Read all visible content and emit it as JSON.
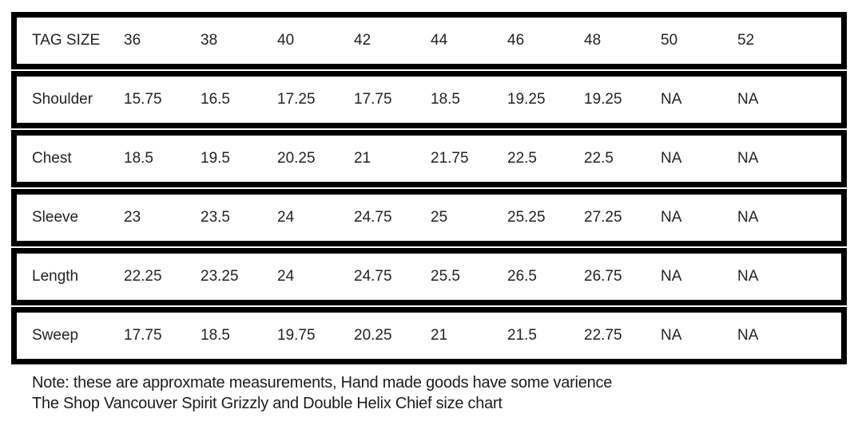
{
  "table": {
    "header": {
      "label": "TAG SIZE",
      "sizes": [
        "36",
        "38",
        "40",
        "42",
        "44",
        "46",
        "48",
        "50",
        "52"
      ]
    },
    "rows": [
      {
        "label": "Shoulder",
        "values": [
          "15.75",
          "16.5",
          "17.25",
          "17.75",
          "18.5",
          "19.25",
          "19.25",
          "NA",
          "NA"
        ]
      },
      {
        "label": "Chest",
        "values": [
          "18.5",
          "19.5",
          "20.25",
          "21",
          "21.75",
          "22.5",
          "22.5",
          "NA",
          "NA"
        ]
      },
      {
        "label": "Sleeve",
        "values": [
          "23",
          "23.5",
          "24",
          "24.75",
          "25",
          "25.25",
          "27.25",
          "NA",
          "NA"
        ]
      },
      {
        "label": "Length",
        "values": [
          "22.25",
          "23.25",
          "24",
          "24.75",
          "25.5",
          "26.5",
          "26.75",
          "NA",
          "NA"
        ]
      },
      {
        "label": "Sweep",
        "values": [
          "17.75",
          "18.5",
          "19.75",
          "20.25",
          "21",
          "21.5",
          "22.75",
          "NA",
          "NA"
        ]
      }
    ]
  },
  "notes": {
    "line1": "Note: these are approxmate measurements, Hand made goods have some varience",
    "line2": "The Shop Vancouver Spirit Grizzly and Double Helix Chief size chart"
  },
  "colors": {
    "border": "#000000",
    "text": "#262223",
    "background": "#ffffff"
  }
}
